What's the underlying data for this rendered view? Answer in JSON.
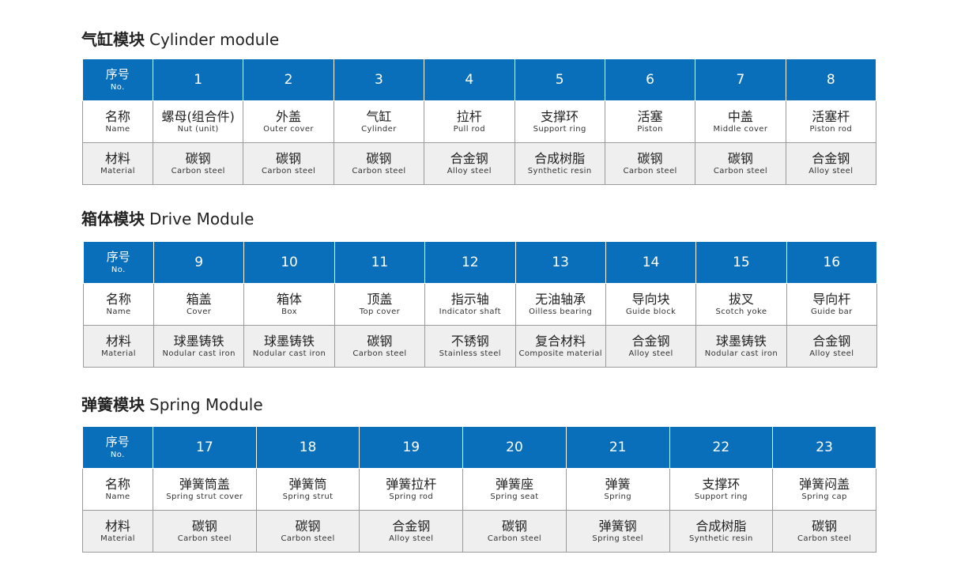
{
  "labels": {
    "no_zh": "序号",
    "no_en": "No.",
    "name_zh": "名称",
    "name_en": "Name",
    "mat_zh": "材料",
    "mat_en": "Material"
  },
  "colors": {
    "header": "#0a6fba"
  },
  "sections": [
    {
      "title_zh": "气缸模块",
      "title_en": "Cylinder module",
      "items": [
        {
          "no": "1",
          "name_zh": "螺母(组合件)",
          "name_en": "Nut (unit)",
          "mat_zh": "碳钢",
          "mat_en": "Carbon steel"
        },
        {
          "no": "2",
          "name_zh": "外盖",
          "name_en": "Outer cover",
          "mat_zh": "碳钢",
          "mat_en": "Carbon steel"
        },
        {
          "no": "3",
          "name_zh": "气缸",
          "name_en": "Cylinder",
          "mat_zh": "碳钢",
          "mat_en": "Carbon steel"
        },
        {
          "no": "4",
          "name_zh": "拉杆",
          "name_en": "Pull rod",
          "mat_zh": "合金钢",
          "mat_en": "Alloy steel"
        },
        {
          "no": "5",
          "name_zh": "支撑环",
          "name_en": "Support ring",
          "mat_zh": "合成树脂",
          "mat_en": "Synthetic resin"
        },
        {
          "no": "6",
          "name_zh": "活塞",
          "name_en": "Piston",
          "mat_zh": "碳钢",
          "mat_en": "Carbon steel"
        },
        {
          "no": "7",
          "name_zh": "中盖",
          "name_en": "Middle cover",
          "mat_zh": "碳钢",
          "mat_en": "Carbon steel"
        },
        {
          "no": "8",
          "name_zh": "活塞杆",
          "name_en": "Piston rod",
          "mat_zh": "合金钢",
          "mat_en": "Alloy steel"
        }
      ]
    },
    {
      "title_zh": "箱体模块",
      "title_en": "Drive Module",
      "items": [
        {
          "no": "9",
          "name_zh": "箱盖",
          "name_en": "Cover",
          "mat_zh": "球墨铸铁",
          "mat_en": "Nodular cast iron"
        },
        {
          "no": "10",
          "name_zh": "箱体",
          "name_en": "Box",
          "mat_zh": "球墨铸铁",
          "mat_en": "Nodular cast iron"
        },
        {
          "no": "11",
          "name_zh": "顶盖",
          "name_en": "Top cover",
          "mat_zh": "碳钢",
          "mat_en": "Carbon steel"
        },
        {
          "no": "12",
          "name_zh": "指示轴",
          "name_en": "Indicator shaft",
          "mat_zh": "不锈钢",
          "mat_en": "Stainless steel"
        },
        {
          "no": "13",
          "name_zh": "无油轴承",
          "name_en": "Oilless bearing",
          "mat_zh": "复合材料",
          "mat_en": "Composite material"
        },
        {
          "no": "14",
          "name_zh": "导向块",
          "name_en": "Guide block",
          "mat_zh": "合金钢",
          "mat_en": "Alloy steel"
        },
        {
          "no": "15",
          "name_zh": "拔叉",
          "name_en": "Scotch yoke",
          "mat_zh": "球墨铸铁",
          "mat_en": "Nodular cast iron"
        },
        {
          "no": "16",
          "name_zh": "导向杆",
          "name_en": "Guide bar",
          "mat_zh": "合金钢",
          "mat_en": "Alloy steel"
        }
      ]
    },
    {
      "title_zh": "弹簧模块",
      "title_en": "Spring Module",
      "items": [
        {
          "no": "17",
          "name_zh": "弹簧筒盖",
          "name_en": "Spring strut cover",
          "mat_zh": "碳钢",
          "mat_en": "Carbon steel"
        },
        {
          "no": "18",
          "name_zh": "弹簧筒",
          "name_en": "Spring strut",
          "mat_zh": "碳钢",
          "mat_en": "Carbon steel"
        },
        {
          "no": "19",
          "name_zh": "弹簧拉杆",
          "name_en": "Spring rod",
          "mat_zh": "合金钢",
          "mat_en": "Alloy steel"
        },
        {
          "no": "20",
          "name_zh": "弹簧座",
          "name_en": "Spring seat",
          "mat_zh": "碳钢",
          "mat_en": "Carbon steel"
        },
        {
          "no": "21",
          "name_zh": "弹簧",
          "name_en": "Spring",
          "mat_zh": "弹簧钢",
          "mat_en": "Spring steel"
        },
        {
          "no": "22",
          "name_zh": "支撑环",
          "name_en": "Support ring",
          "mat_zh": "合成树脂",
          "mat_en": "Synthetic resin"
        },
        {
          "no": "23",
          "name_zh": "弹簧闷盖",
          "name_en": "Spring cap",
          "mat_zh": "碳钢",
          "mat_en": "Carbon steel"
        }
      ]
    }
  ]
}
